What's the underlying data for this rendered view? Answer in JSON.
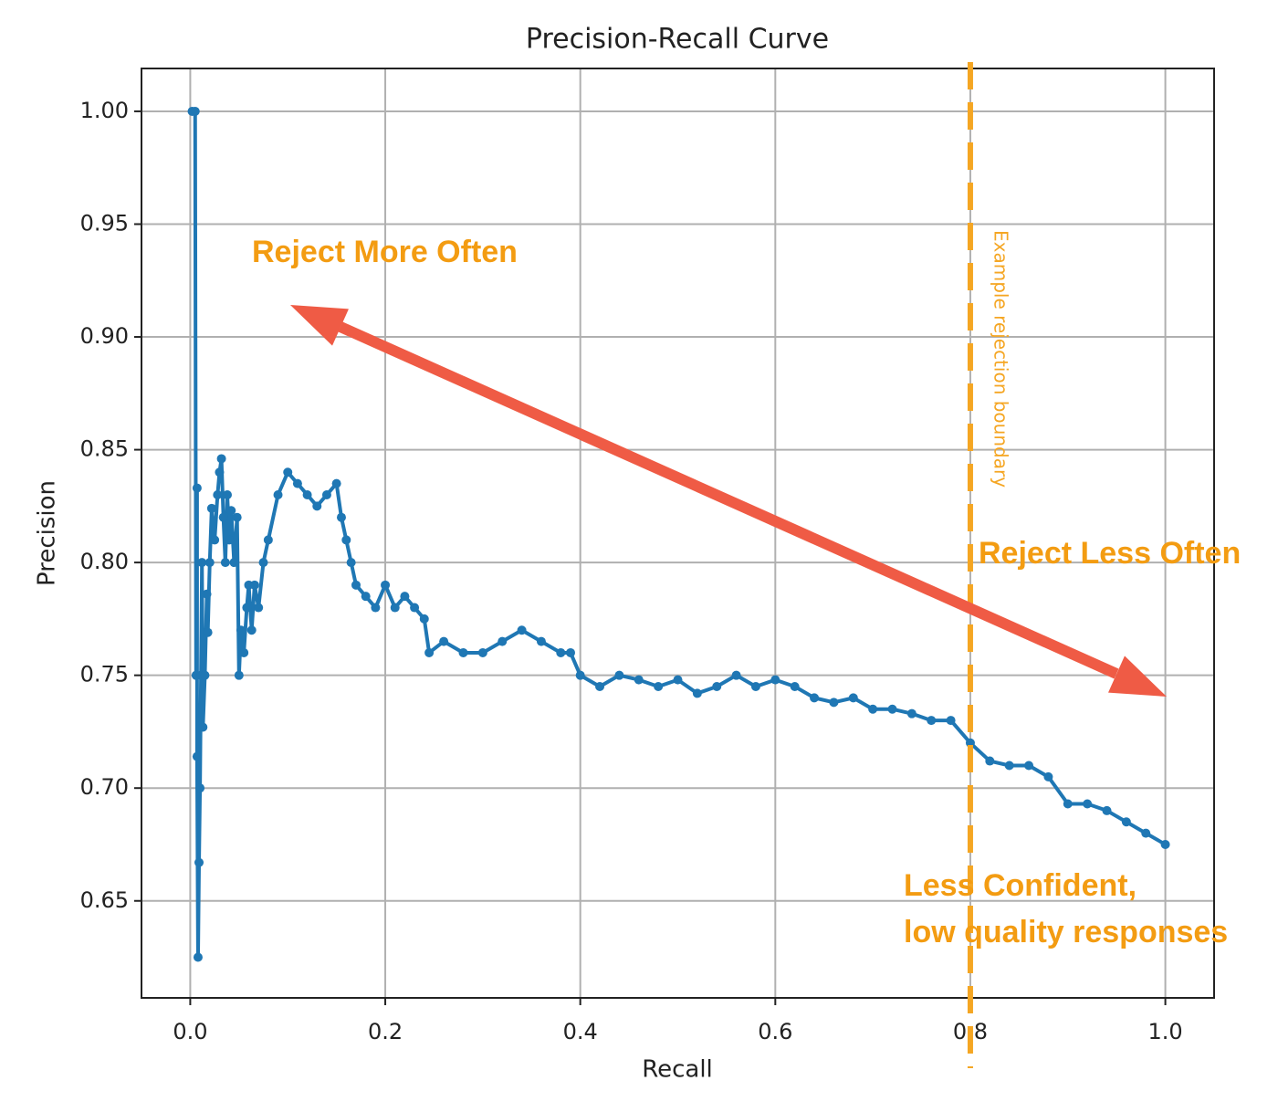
{
  "chart_data": {
    "type": "line",
    "title": "Precision-Recall Curve",
    "xlabel": "Recall",
    "ylabel": "Precision",
    "color": "#1f77b4",
    "grid": true,
    "xlim": [
      -0.05,
      1.05
    ],
    "ylim": [
      0.607,
      1.019
    ],
    "xticks": [
      {
        "value": 0,
        "label": "0.0"
      },
      0.2,
      0.4,
      0.6,
      0.8,
      {
        "value": 1,
        "label": "1.0"
      }
    ],
    "yticks": [
      {
        "value": 1,
        "label": "1.00"
      },
      0.95,
      {
        "value": 0.9,
        "label": "0.90"
      },
      0.85,
      {
        "value": 0.8,
        "label": "0.80"
      },
      0.75,
      {
        "value": 0.7,
        "label": "0.70"
      },
      0.65
    ],
    "x": [
      0.002,
      0.005,
      0.006,
      0.007,
      0.007,
      0.008,
      0.009,
      0.01,
      0.011,
      0.012,
      0.013,
      0.015,
      0.017,
      0.018,
      0.02,
      0.022,
      0.025,
      0.028,
      0.03,
      0.032,
      0.034,
      0.036,
      0.038,
      0.04,
      0.042,
      0.045,
      0.048,
      0.05,
      0.052,
      0.055,
      0.058,
      0.06,
      0.063,
      0.066,
      0.07,
      0.075,
      0.08,
      0.09,
      0.1,
      0.11,
      0.12,
      0.13,
      0.14,
      0.15,
      0.155,
      0.16,
      0.165,
      0.17,
      0.18,
      0.19,
      0.2,
      0.21,
      0.22,
      0.23,
      0.24,
      0.245,
      0.26,
      0.28,
      0.3,
      0.32,
      0.34,
      0.36,
      0.38,
      0.39,
      0.4,
      0.42,
      0.44,
      0.46,
      0.48,
      0.5,
      0.52,
      0.54,
      0.56,
      0.58,
      0.6,
      0.62,
      0.64,
      0.66,
      0.68,
      0.7,
      0.72,
      0.74,
      0.76,
      0.78,
      0.8,
      0.82,
      0.84,
      0.86,
      0.88,
      0.9,
      0.92,
      0.94,
      0.96,
      0.98,
      1.0
    ],
    "values": [
      1.0,
      1.0,
      0.75,
      0.833,
      0.714,
      0.625,
      0.667,
      0.7,
      0.75,
      0.8,
      0.727,
      0.75,
      0.786,
      0.769,
      0.8,
      0.824,
      0.81,
      0.83,
      0.84,
      0.846,
      0.82,
      0.8,
      0.83,
      0.81,
      0.823,
      0.8,
      0.82,
      0.75,
      0.77,
      0.76,
      0.78,
      0.79,
      0.77,
      0.79,
      0.78,
      0.8,
      0.81,
      0.83,
      0.84,
      0.835,
      0.83,
      0.825,
      0.83,
      0.835,
      0.82,
      0.81,
      0.8,
      0.79,
      0.785,
      0.78,
      0.79,
      0.78,
      0.785,
      0.78,
      0.775,
      0.76,
      0.765,
      0.76,
      0.76,
      0.765,
      0.77,
      0.765,
      0.76,
      0.76,
      0.75,
      0.745,
      0.75,
      0.748,
      0.745,
      0.748,
      0.742,
      0.745,
      0.75,
      0.745,
      0.748,
      0.745,
      0.74,
      0.738,
      0.74,
      0.735,
      0.735,
      0.733,
      0.73,
      0.73,
      0.72,
      0.712,
      0.71,
      0.71,
      0.705,
      0.693,
      0.693,
      0.69,
      0.685,
      0.68,
      0.675
    ],
    "vline": {
      "x": 0.8,
      "label": "Example rejection boundary",
      "color": "#f5a623"
    },
    "annotations": [
      "Reject More Often",
      "Reject Less Often",
      "Less Confident,",
      "low quality responses"
    ],
    "annotation_color": "#f39c12"
  }
}
